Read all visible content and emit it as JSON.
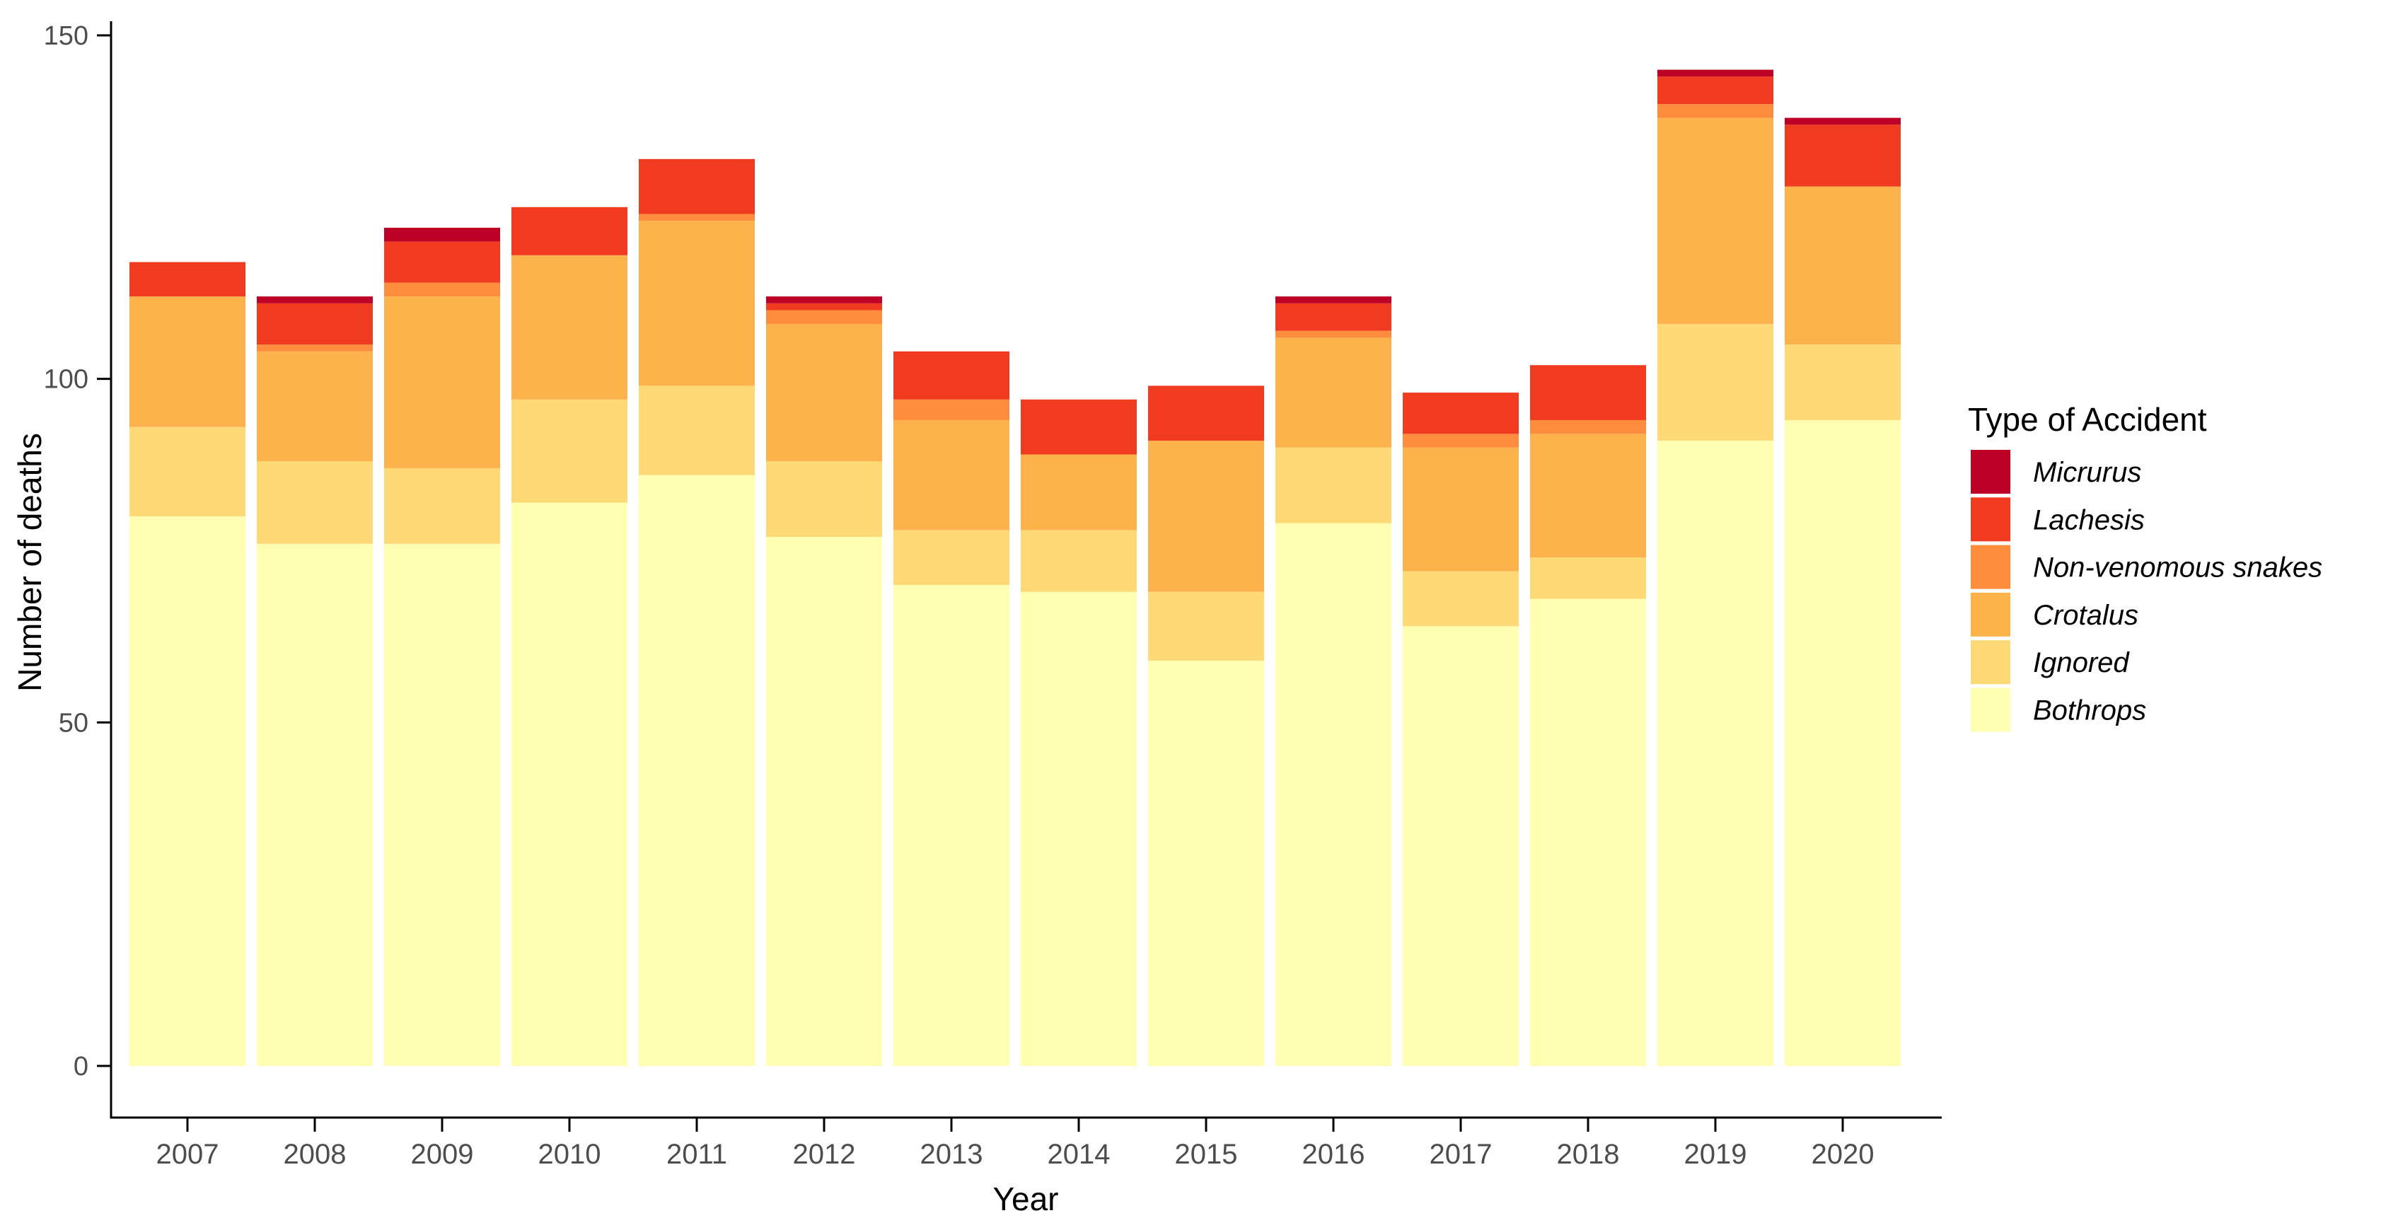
{
  "chart_data": {
    "type": "bar",
    "stacked": true,
    "title": "",
    "xlabel": "Year",
    "ylabel": "Number of deaths",
    "ylim": [
      0,
      150
    ],
    "yticks": [
      0,
      50,
      100,
      150
    ],
    "grid": false,
    "legend_title": "Type of Accident",
    "legend_position": "right",
    "legend_labels_italic": true,
    "categories": [
      "2007",
      "2008",
      "2009",
      "2010",
      "2011",
      "2012",
      "2013",
      "2014",
      "2015",
      "2016",
      "2017",
      "2018",
      "2019",
      "2020"
    ],
    "series": [
      {
        "name": "Micrurus",
        "color": "#BD0026",
        "values": [
          0,
          1,
          2,
          0,
          0,
          1,
          0,
          0,
          0,
          1,
          0,
          0,
          1,
          1
        ]
      },
      {
        "name": "Lachesis",
        "color": "#F03B20",
        "values": [
          5,
          6,
          6,
          7,
          8,
          1,
          7,
          8,
          8,
          4,
          6,
          8,
          4,
          9
        ]
      },
      {
        "name": "Non-venomous snakes",
        "color": "#FD8D3C",
        "values": [
          0,
          1,
          2,
          0,
          1,
          2,
          3,
          0,
          0,
          1,
          2,
          2,
          2,
          0
        ]
      },
      {
        "name": "Crotalus",
        "color": "#FEB24C",
        "values": [
          19,
          16,
          25,
          21,
          24,
          20,
          16,
          11,
          22,
          16,
          18,
          18,
          30,
          23
        ]
      },
      {
        "name": "Ignored",
        "color": "#FED976",
        "values": [
          13,
          12,
          11,
          15,
          13,
          11,
          8,
          9,
          10,
          11,
          8,
          6,
          17,
          11
        ]
      },
      {
        "name": "Bothrops",
        "color": "#FFFFB2",
        "values": [
          80,
          76,
          76,
          82,
          86,
          77,
          70,
          69,
          59,
          79,
          64,
          68,
          91,
          94
        ]
      }
    ],
    "totals": [
      117,
      112,
      122,
      125,
      132,
      112,
      104,
      97,
      99,
      112,
      98,
      102,
      145,
      138
    ],
    "axis_color": "#000000",
    "tick_label_color": "#4d4d4d"
  }
}
